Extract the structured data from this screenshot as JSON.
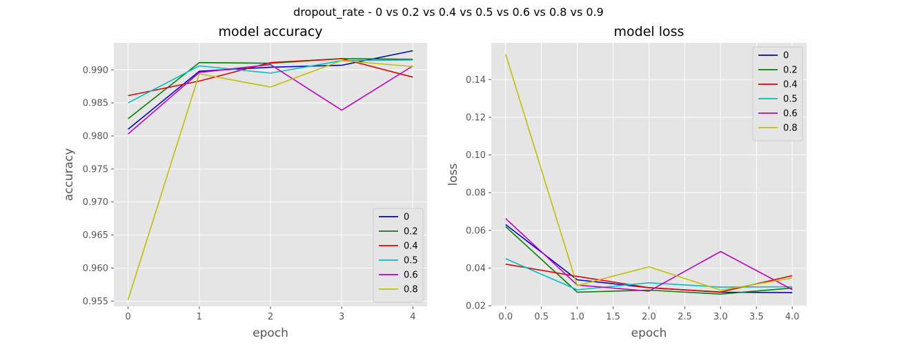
{
  "figure": {
    "suptitle": "dropout_rate - 0 vs 0.2 vs 0.4 vs 0.5 vs 0.6 vs 0.8 vs 0.9"
  },
  "colors": {
    "0": "#0000cc",
    "0.2": "#007f00",
    "0.4": "#e00000",
    "0.5": "#00bfbf",
    "0.6": "#bf00bf",
    "0.8": "#bfbf00",
    "background": "#e5e5e5",
    "grid": "#ffffff"
  },
  "chart_data": [
    {
      "type": "line",
      "title": "model accuracy",
      "xlabel": "epoch",
      "ylabel": "accuracy",
      "x": [
        0,
        1,
        2,
        3,
        4
      ],
      "xlim": [
        -0.2,
        4.2
      ],
      "ylim": [
        0.9542,
        0.9941
      ],
      "xticks": [
        0,
        1,
        2,
        3,
        4
      ],
      "xtick_labels": [
        "0",
        "1",
        "2",
        "3",
        "4"
      ],
      "yticks": [
        0.955,
        0.96,
        0.965,
        0.97,
        0.975,
        0.98,
        0.985,
        0.99
      ],
      "ytick_labels": [
        "0.955",
        "0.960",
        "0.965",
        "0.970",
        "0.975",
        "0.980",
        "0.985",
        "0.990"
      ],
      "grid": true,
      "legend_position": "lower-right",
      "series": [
        {
          "name": "0",
          "color_key": "0",
          "values": [
            0.981,
            0.9898,
            0.9904,
            0.9907,
            0.9929
          ]
        },
        {
          "name": "0.2",
          "color_key": "0.2",
          "values": [
            0.9826,
            0.9911,
            0.991,
            0.9917,
            0.9916
          ]
        },
        {
          "name": "0.4",
          "color_key": "0.4",
          "values": [
            0.9861,
            0.9883,
            0.9911,
            0.9917,
            0.9889
          ]
        },
        {
          "name": "0.5",
          "color_key": "0.5",
          "values": [
            0.985,
            0.9906,
            0.9895,
            0.9914,
            0.9915
          ]
        },
        {
          "name": "0.6",
          "color_key": "0.6",
          "values": [
            0.9803,
            0.9896,
            0.9908,
            0.9839,
            0.9906
          ]
        },
        {
          "name": "0.8",
          "color_key": "0.8",
          "values": [
            0.9552,
            0.9894,
            0.9874,
            0.9914,
            0.9905
          ]
        }
      ]
    },
    {
      "type": "line",
      "title": "model loss",
      "xlabel": "epoch",
      "ylabel": "loss",
      "x": [
        0,
        1,
        2,
        3,
        4
      ],
      "xlim": [
        -0.2,
        4.2
      ],
      "ylim": [
        0.0197,
        0.1595
      ],
      "xticks": [
        0,
        0.5,
        1,
        1.5,
        2,
        2.5,
        3,
        3.5,
        4
      ],
      "xtick_labels": [
        "0.0",
        "0.5",
        "1.0",
        "1.5",
        "2.0",
        "2.5",
        "3.0",
        "3.5",
        "4.0"
      ],
      "yticks": [
        0.02,
        0.04,
        0.06,
        0.08,
        0.1,
        0.12,
        0.14
      ],
      "ytick_labels": [
        "0.02",
        "0.04",
        "0.06",
        "0.08",
        "0.10",
        "0.12",
        "0.14"
      ],
      "grid": true,
      "legend_position": "upper-right",
      "series": [
        {
          "name": "0",
          "color_key": "0",
          "values": [
            0.0631,
            0.0338,
            0.0296,
            0.0272,
            0.027
          ]
        },
        {
          "name": "0.2",
          "color_key": "0.2",
          "values": [
            0.062,
            0.0272,
            0.0283,
            0.0262,
            0.0294
          ]
        },
        {
          "name": "0.4",
          "color_key": "0.4",
          "values": [
            0.0421,
            0.0356,
            0.0296,
            0.0273,
            0.036
          ]
        },
        {
          "name": "0.5",
          "color_key": "0.5",
          "values": [
            0.045,
            0.0285,
            0.0322,
            0.0299,
            0.0301
          ]
        },
        {
          "name": "0.6",
          "color_key": "0.6",
          "values": [
            0.0663,
            0.031,
            0.0278,
            0.0488,
            0.0286
          ]
        },
        {
          "name": "0.8",
          "color_key": "0.8",
          "values": [
            0.1534,
            0.0307,
            0.0407,
            0.0283,
            0.0347
          ]
        }
      ]
    }
  ]
}
